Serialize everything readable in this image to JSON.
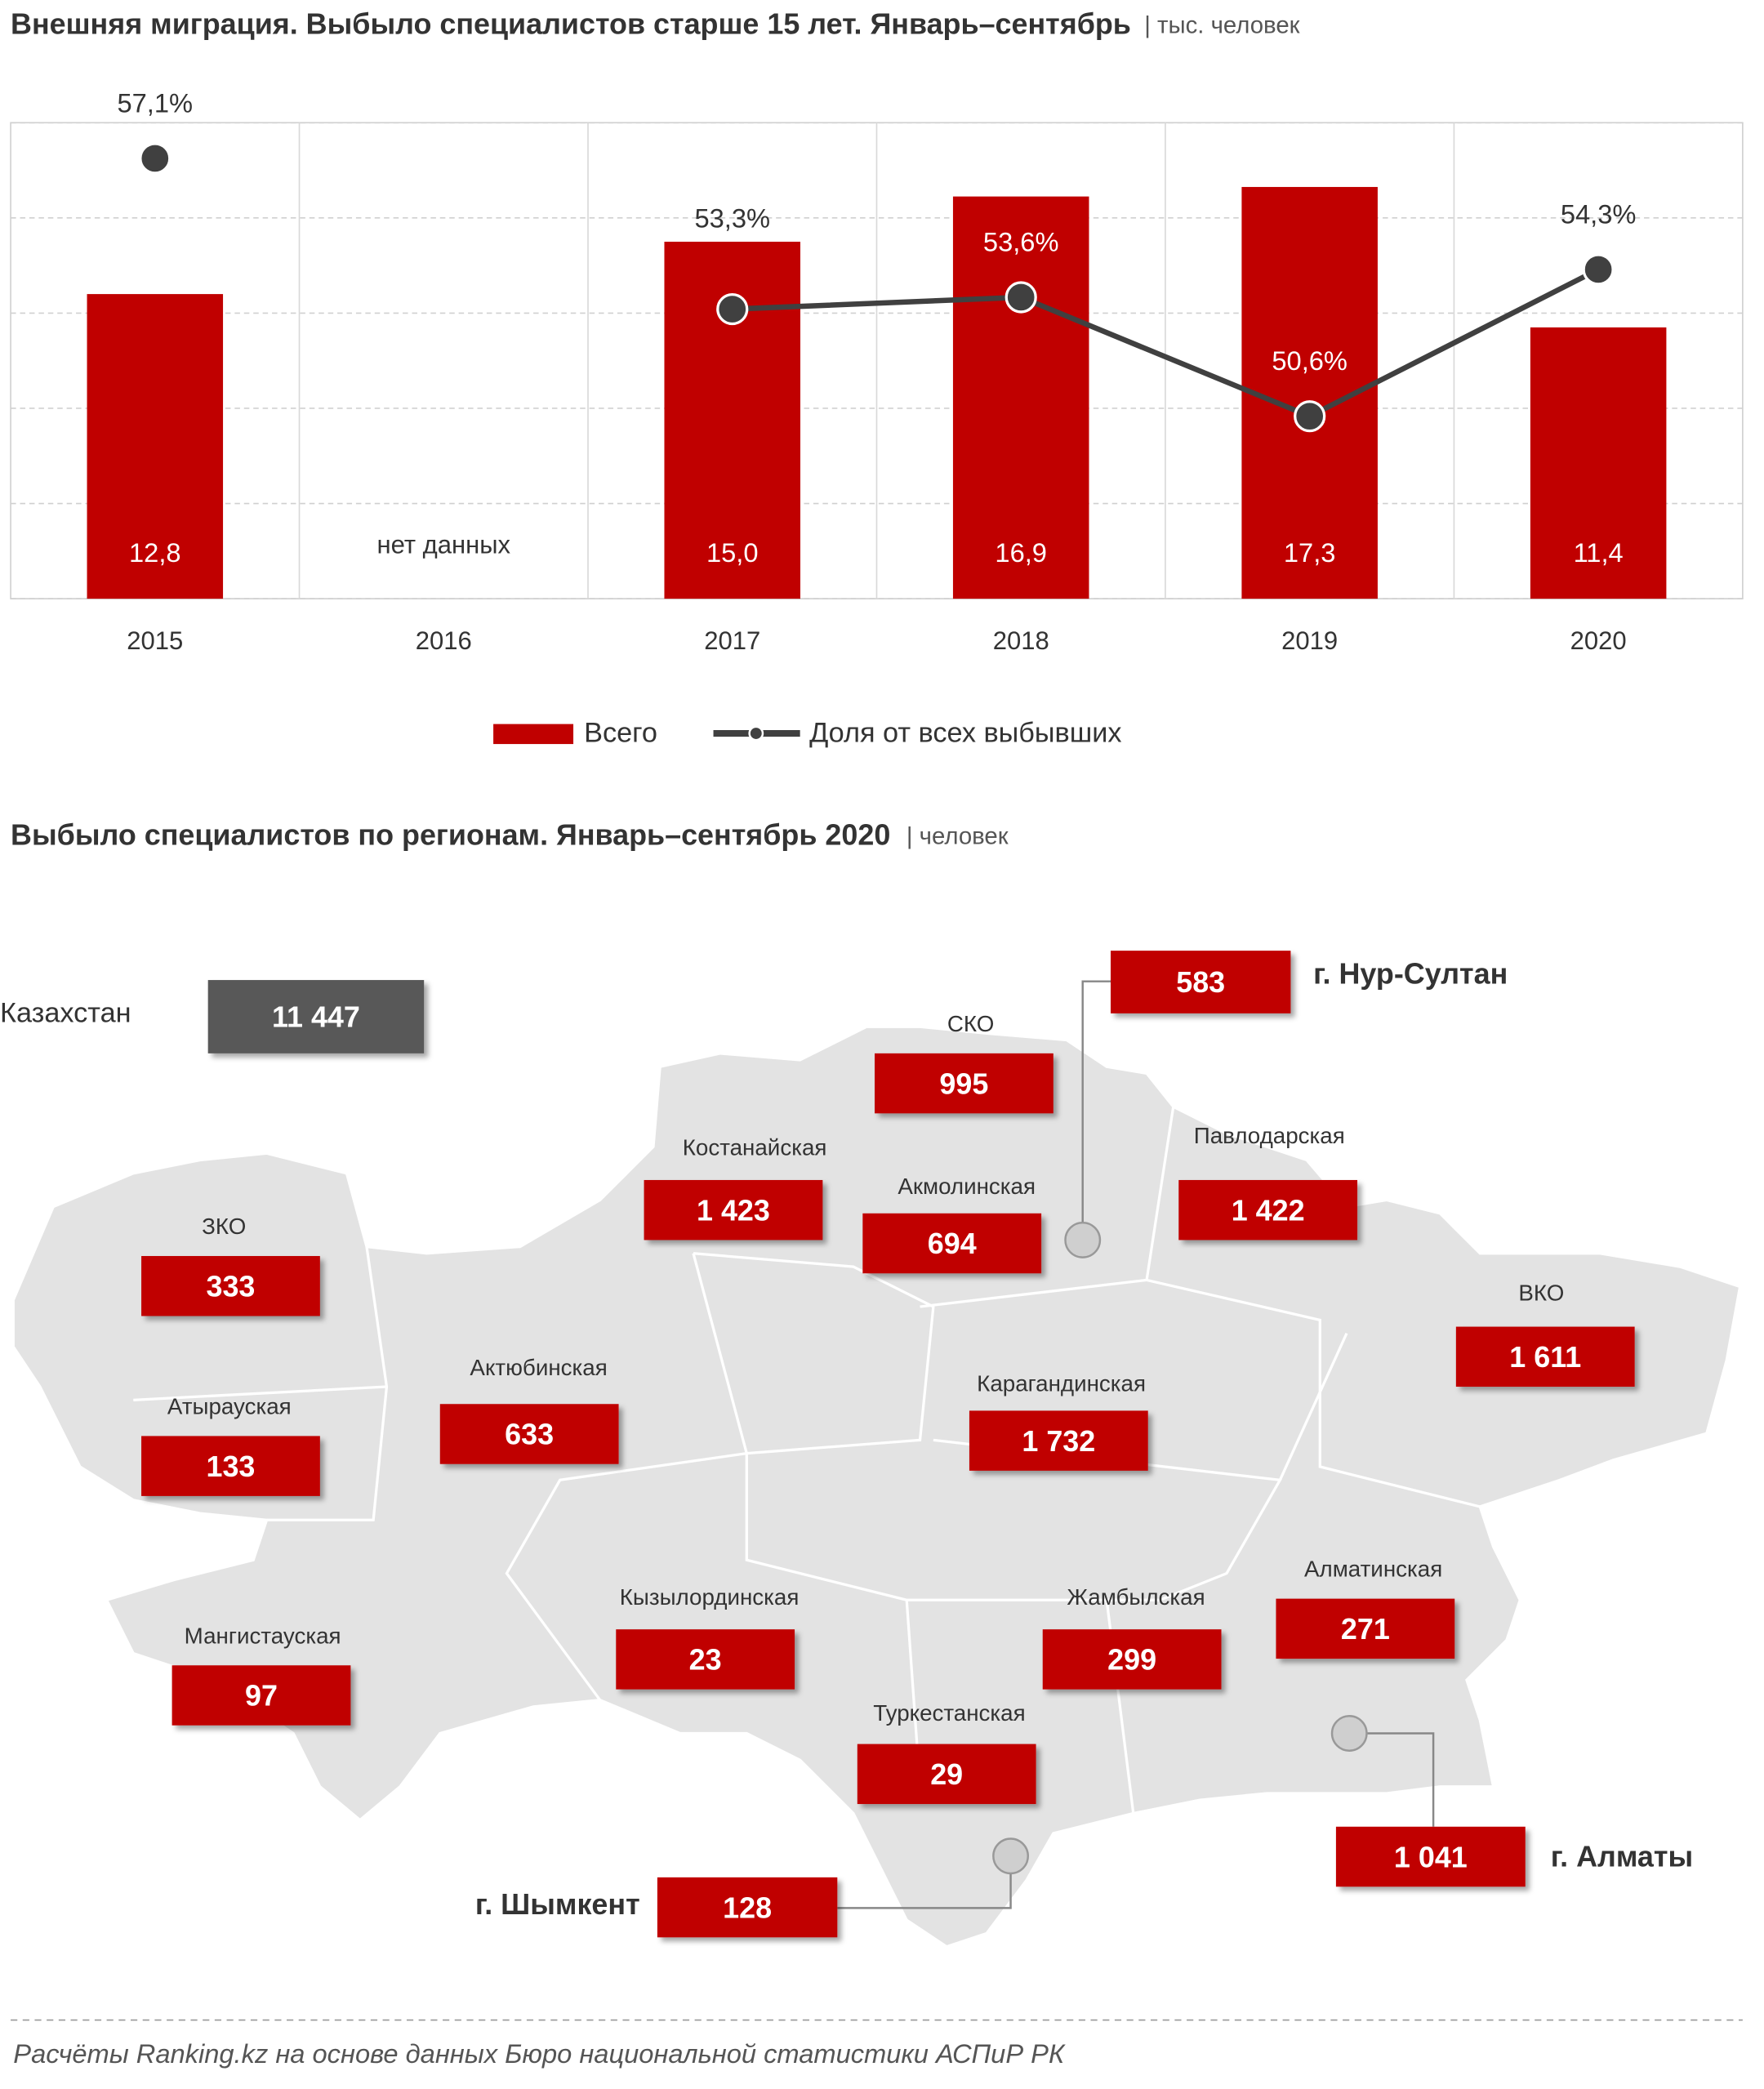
{
  "chart_data": {
    "type": "bar_line",
    "title": "Внешняя миграция. Выбыло специалистов старше 15 лет. Январь–сентябрь",
    "unit": "| тыс. человек",
    "categories": [
      "2015",
      "2016",
      "2017",
      "2018",
      "2019",
      "2020"
    ],
    "no_data_label": "нет данных",
    "series": [
      {
        "name": "Всего",
        "type": "bar",
        "color": "#c00000",
        "values": [
          12.8,
          null,
          15.0,
          16.9,
          17.3,
          11.4
        ],
        "value_labels": [
          "12,8",
          null,
          "15,0",
          "16,9",
          "17,3",
          "11,4"
        ]
      },
      {
        "name": "Доля от всех выбывших",
        "type": "line",
        "axis": "y2",
        "color": "#404040",
        "values": [
          57.1,
          null,
          53.3,
          53.6,
          50.6,
          54.3
        ],
        "value_labels": [
          "57,1%",
          null,
          "53,3%",
          "53,6%",
          "50,6%",
          "54,3%"
        ]
      }
    ],
    "ylim": [
      0,
      20
    ],
    "yticks": [
      0,
      4,
      8,
      12,
      16,
      20
    ],
    "y2lim": [
      46,
      58
    ],
    "grid": true,
    "legend": "bottom"
  },
  "map": {
    "title": "Выбыло специалистов по регионам. Январь–сентябрь 2020",
    "unit": "| человек",
    "total": {
      "label": "Казахстан",
      "value": "11 447"
    },
    "regions": [
      {
        "name": "СКО",
        "value": "995"
      },
      {
        "name": "Костанайская",
        "value": "1 423"
      },
      {
        "name": "Акмолинская",
        "value": "694"
      },
      {
        "name": "Павлодарская",
        "value": "1 422"
      },
      {
        "name": "ЗКО",
        "value": "333"
      },
      {
        "name": "ВКО",
        "value": "1 611"
      },
      {
        "name": "Актюбинская",
        "value": "633"
      },
      {
        "name": "Атырауская",
        "value": "133"
      },
      {
        "name": "Карагандинская",
        "value": "1 732"
      },
      {
        "name": "Алматинская",
        "value": "271"
      },
      {
        "name": "Кызылординская",
        "value": "23"
      },
      {
        "name": "Жамбылская",
        "value": "299"
      },
      {
        "name": "Мангистауская",
        "value": "97"
      },
      {
        "name": "Туркестанская",
        "value": "29"
      }
    ],
    "cities": [
      {
        "name": "г. Нур-Султан",
        "value": "583"
      },
      {
        "name": "г. Алматы",
        "value": "1 041"
      },
      {
        "name": "г. Шымкент",
        "value": "128"
      }
    ]
  },
  "footer": {
    "source": "Расчёты Ranking.kz на основе данных Бюро национальной статистики АСПиР РК"
  }
}
